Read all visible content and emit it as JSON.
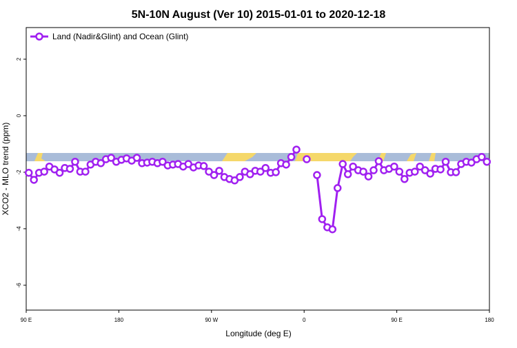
{
  "chart_data": {
    "type": "line",
    "title": "5N-10N August (Ver 10)   2015-01-01 to 2020-12-18",
    "xlabel": "Longitude (deg E)",
    "ylabel": "XCO2 - MLO trend (ppm)",
    "xlim": [
      90,
      540
    ],
    "ylim": [
      -6.88,
      3.12
    ],
    "xticks": [
      {
        "value": 90,
        "label": "90 E"
      },
      180,
      {
        "value": 270,
        "label": "90 W"
      },
      {
        "value": 360,
        "label": "0"
      },
      {
        "value": 450,
        "label": "90 E"
      },
      {
        "value": 540,
        "label": "180"
      }
    ],
    "yticks": [
      -6,
      -4,
      -2,
      0,
      2
    ],
    "grid": false,
    "legend": "top-left",
    "x": [
      92.5,
      97.5,
      102.5,
      107.5,
      112.5,
      117.5,
      122.5,
      127.5,
      132.5,
      137.5,
      142.5,
      147.5,
      152.5,
      157.5,
      162.5,
      167.5,
      172.5,
      177.5,
      182.5,
      187.5,
      192.5,
      197.5,
      202.5,
      207.5,
      212.5,
      217.5,
      222.5,
      227.5,
      232.5,
      237.5,
      242.5,
      247.5,
      252.5,
      257.5,
      262.5,
      267.5,
      272.5,
      277.5,
      282.5,
      287.5,
      292.5,
      297.5,
      302.5,
      307.5,
      312.5,
      317.5,
      322.5,
      327.5,
      332.5,
      337.5,
      342.5,
      347.5,
      352.5,
      357.5,
      362.5,
      367.5,
      372.5,
      377.5,
      382.5,
      387.5,
      392.5,
      397.5,
      402.5,
      407.5,
      412.5,
      417.5,
      422.5,
      427.5,
      432.5,
      437.5,
      442.5,
      447.5,
      452.5,
      457.5,
      462.5,
      467.5,
      472.5,
      477.5,
      482.5,
      487.5,
      492.5,
      497.5,
      502.5,
      507.5,
      512.5,
      517.5,
      522.5,
      527.5,
      532.5,
      537.5
    ],
    "series": [
      {
        "name": "Land (Nadir&Glint) and Ocean (Glint)",
        "color": "#a020f0",
        "values": [
          -2.02,
          -2.27,
          -2.02,
          -1.98,
          -1.8,
          -1.9,
          -2.02,
          -1.85,
          -1.88,
          -1.63,
          -1.98,
          -1.98,
          -1.73,
          -1.63,
          -1.68,
          -1.54,
          -1.49,
          -1.63,
          -1.56,
          -1.51,
          -1.59,
          -1.49,
          -1.68,
          -1.66,
          -1.63,
          -1.68,
          -1.63,
          -1.76,
          -1.73,
          -1.71,
          -1.8,
          -1.71,
          -1.83,
          -1.76,
          -1.78,
          -1.98,
          -2.1,
          -1.95,
          -2.17,
          -2.24,
          -2.29,
          -2.17,
          -1.98,
          -2.07,
          -1.95,
          -1.98,
          -1.85,
          -2.02,
          -2.0,
          -1.68,
          -1.73,
          -1.46,
          -1.2,
          null,
          -1.54,
          null,
          -2.1,
          -3.66,
          -3.95,
          -4.02,
          -2.56,
          -1.71,
          -2.07,
          -1.8,
          -1.93,
          -1.98,
          -2.15,
          -1.93,
          -1.61,
          -1.93,
          -1.88,
          -1.8,
          -1.98,
          -2.24,
          -2.02,
          -1.98,
          -1.8,
          -1.93,
          -2.05,
          -1.88,
          -1.9,
          -1.63,
          -2.0,
          -2.0,
          -1.71,
          -1.63,
          -1.66,
          -1.54,
          -1.46,
          -1.63
        ]
      }
    ]
  }
}
